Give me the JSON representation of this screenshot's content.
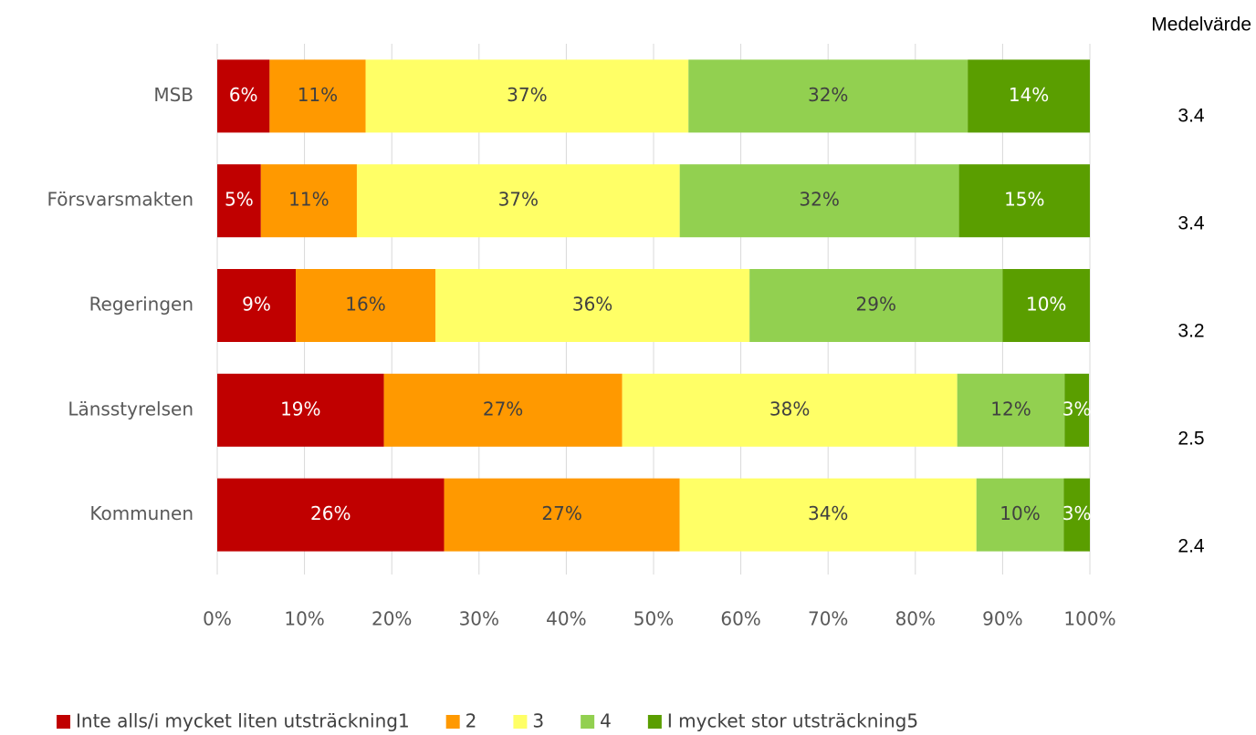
{
  "chart_data": {
    "type": "stacked_barh",
    "categories": [
      "MSB",
      "Försvarsmakten",
      "Regeringen",
      "Länsstyrelsen",
      "Kommunen"
    ],
    "series": [
      {
        "name": "Inte alls/i mycket liten utsträckning1",
        "color": "#c00000",
        "values": [
          6,
          5,
          9,
          19.1,
          26
        ],
        "value_labels": [
          "6%",
          "5%",
          "9%",
          "19%",
          "26%"
        ]
      },
      {
        "name": "2",
        "color": "#ff9900",
        "values": [
          11,
          11,
          16,
          27.3,
          27
        ],
        "value_labels": [
          "11%",
          "11%",
          "16%",
          "27%",
          "27%"
        ]
      },
      {
        "name": "3",
        "color": "#ffff66",
        "values": [
          37,
          37,
          36,
          38.4,
          34
        ],
        "value_labels": [
          "37%",
          "37%",
          "36%",
          "38%",
          "34%"
        ]
      },
      {
        "name": "4",
        "color": "#92d050",
        "values": [
          32,
          32,
          29,
          12.3,
          10
        ],
        "value_labels": [
          "32%",
          "32%",
          "29%",
          "12%",
          "10%"
        ]
      },
      {
        "name": "I mycket stor utsträckning5",
        "color": "#5a9e00",
        "values": [
          14,
          15,
          10,
          2.8,
          3
        ],
        "value_labels": [
          "14%",
          "15%",
          "10%",
          "3%",
          "3%"
        ]
      }
    ],
    "xlim": [
      0,
      100
    ],
    "xticks": [
      {
        "value": 0,
        "label": "0%"
      },
      {
        "value": 10,
        "label": "10%"
      },
      {
        "value": 20,
        "label": "20%"
      },
      {
        "value": 30,
        "label": "30%"
      },
      {
        "value": 40,
        "label": "40%"
      },
      {
        "value": 50,
        "label": "50%"
      },
      {
        "value": 60,
        "label": "60%"
      },
      {
        "value": 70,
        "label": "70%"
      },
      {
        "value": 80,
        "label": "80%"
      },
      {
        "value": 90,
        "label": "90%"
      },
      {
        "value": 100,
        "label": "100%"
      }
    ],
    "grid": true,
    "legend": "bottom",
    "mean_title": "Medelvärde",
    "means": [
      3.4,
      3.4,
      3.2,
      2.5,
      2.4
    ]
  }
}
